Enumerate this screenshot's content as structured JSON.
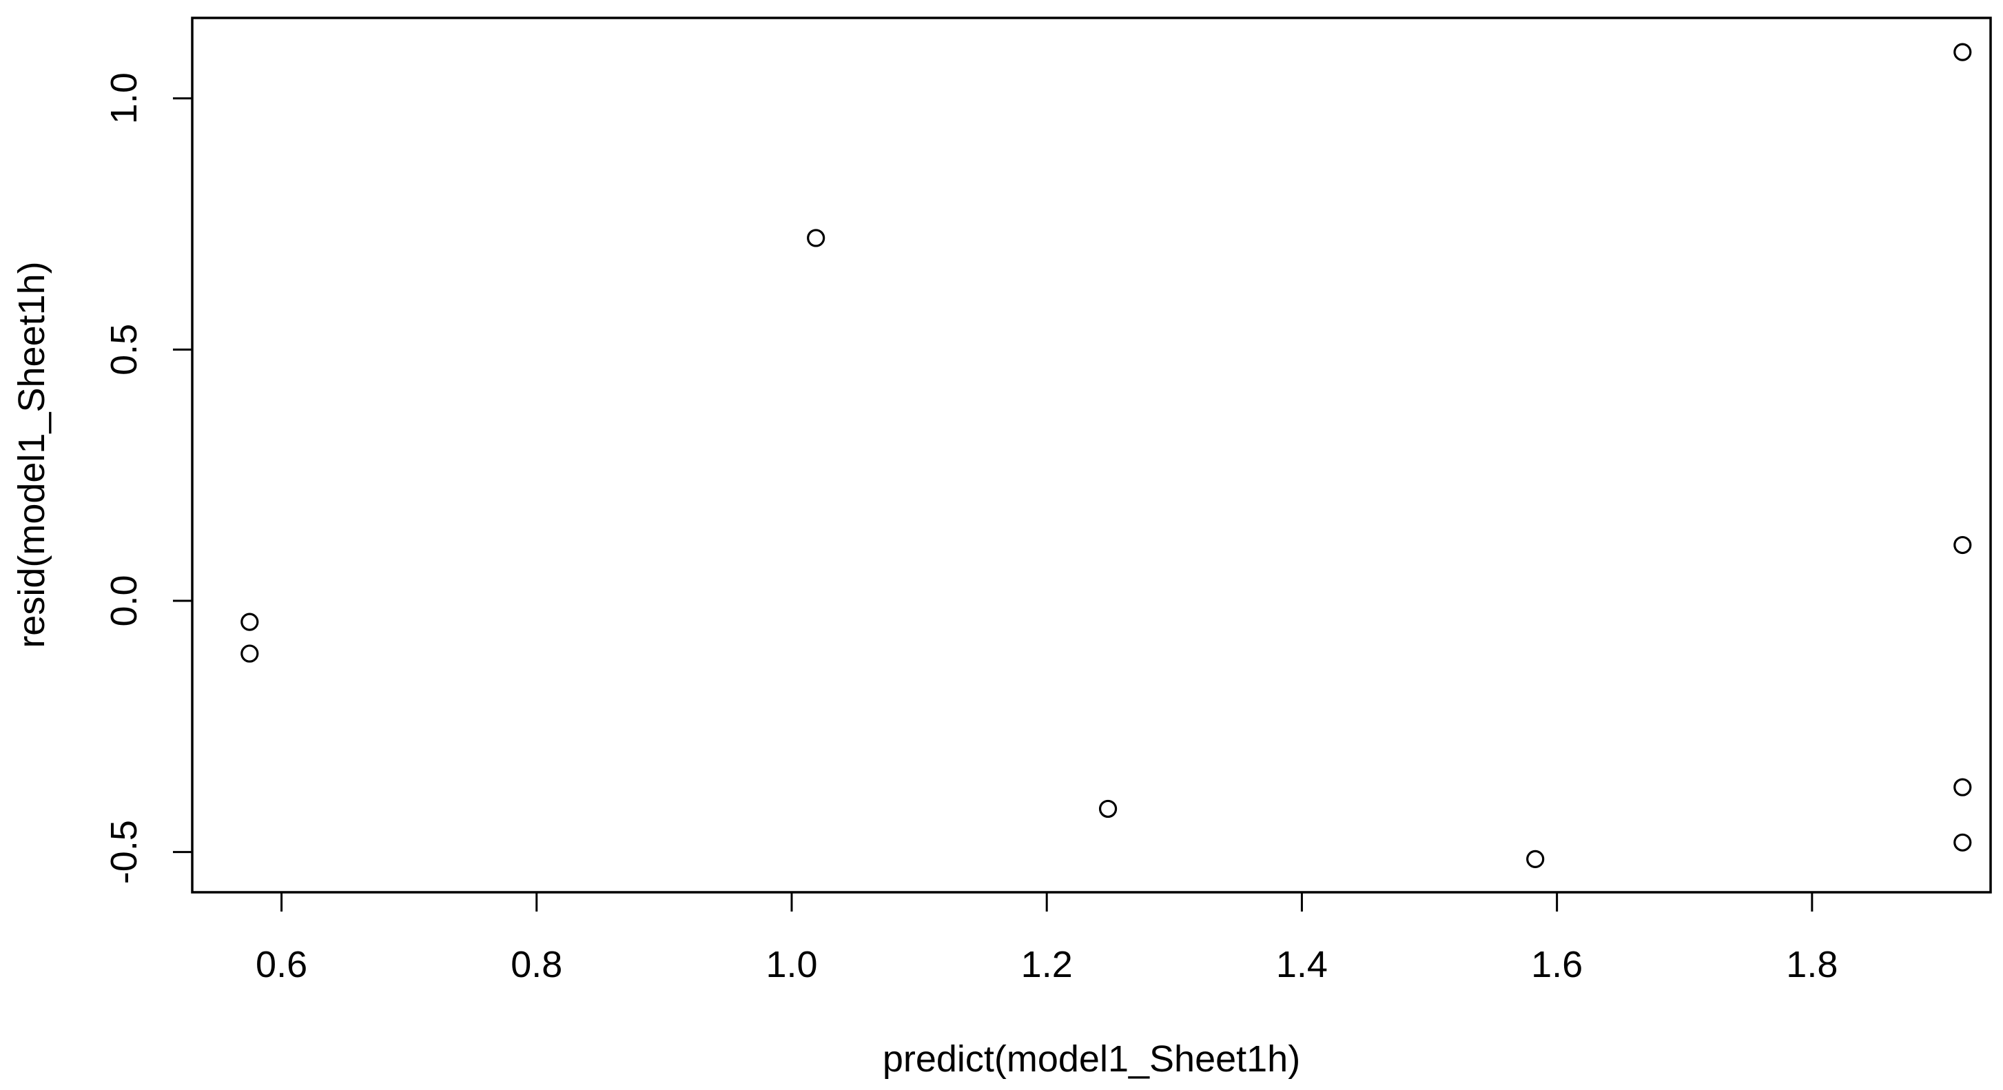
{
  "chart_data": {
    "type": "scatter",
    "title": "",
    "xlabel": "predict(model1_Sheet1h)",
    "ylabel": "resid(model1_Sheet1h)",
    "xlim": [
      0.53,
      1.94
    ],
    "ylim": [
      -0.58,
      1.16
    ],
    "x_ticks": [
      0.6,
      0.8,
      1.0,
      1.2,
      1.4,
      1.6,
      1.8
    ],
    "x_tick_labels": [
      "0.6",
      "0.8",
      "1.0",
      "1.2",
      "1.4",
      "1.6",
      "1.8"
    ],
    "y_ticks": [
      -0.5,
      0.0,
      0.5,
      1.0
    ],
    "y_tick_labels": [
      "-0.5",
      "0.0",
      "0.5",
      "1.0"
    ],
    "grid": false,
    "legend": "none",
    "points": [
      {
        "x": 0.575,
        "y": -0.042
      },
      {
        "x": 0.575,
        "y": -0.105
      },
      {
        "x": 1.019,
        "y": 0.722
      },
      {
        "x": 1.248,
        "y": -0.414
      },
      {
        "x": 1.583,
        "y": -0.514
      },
      {
        "x": 1.918,
        "y": 1.092
      },
      {
        "x": 1.918,
        "y": 0.111
      },
      {
        "x": 1.918,
        "y": -0.371
      },
      {
        "x": 1.918,
        "y": -0.481
      }
    ],
    "colors": {
      "point_stroke": "#000000",
      "axis": "#000000",
      "background": "#ffffff"
    }
  }
}
